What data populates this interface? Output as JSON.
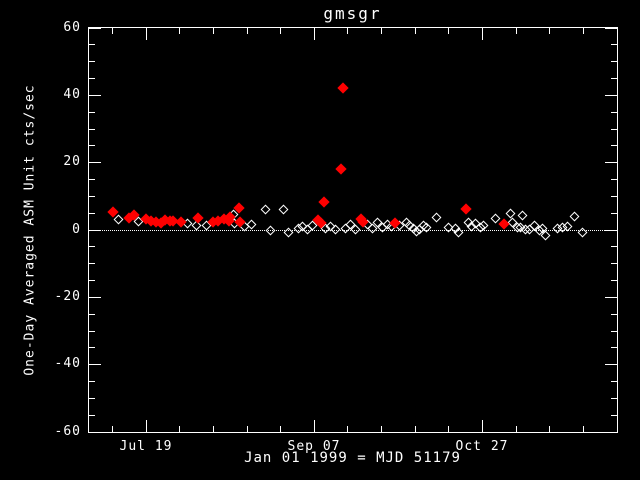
{
  "colors": {
    "background": "#000000",
    "foreground": "#ffffff",
    "flagged_point": "#ff0000"
  },
  "chart_data": {
    "type": "scatter",
    "title": "gmsgr",
    "xlabel": "Jan 01 1999 = MJD 51179",
    "ylabel": "One-Day Averaged ASM Unit cts/sec",
    "x_unit": "day of year 1999",
    "xlim": [
      183,
      340
    ],
    "ylim": [
      -60,
      60
    ],
    "grid": false,
    "legend": null,
    "zero_line": {
      "y": 0,
      "style": "dotted"
    },
    "x_major_ticks": [
      {
        "value": 200,
        "label": "Jul 19"
      },
      {
        "value": 250,
        "label": "Sep 07"
      },
      {
        "value": 300,
        "label": "Oct 27"
      }
    ],
    "x_minor_step": 10,
    "y_major_ticks": [
      {
        "value": 60,
        "label": "60"
      },
      {
        "value": 40,
        "label": "40"
      },
      {
        "value": 20,
        "label": "20"
      },
      {
        "value": 0,
        "label": "0"
      },
      {
        "value": -20,
        "label": "-20"
      },
      {
        "value": -40,
        "label": "-40"
      },
      {
        "value": -60,
        "label": "-60"
      }
    ],
    "y_minor_step": 5,
    "series": [
      {
        "name": "open-diamond-points",
        "marker": "open-diamond",
        "color": "#ffffff",
        "points": [
          [
            192,
            3.1
          ],
          [
            198,
            2.5
          ],
          [
            212.5,
            1.9
          ],
          [
            215,
            1.3
          ],
          [
            218,
            1.3
          ],
          [
            226,
            4.6
          ],
          [
            226.5,
            1.9
          ],
          [
            229.5,
            1.0
          ],
          [
            231.5,
            1.6
          ],
          [
            235.5,
            5.8
          ],
          [
            237,
            -0.4
          ],
          [
            241,
            5.8
          ],
          [
            242.5,
            -1.0
          ],
          [
            245.5,
            0.4
          ],
          [
            246.5,
            1.0
          ],
          [
            248,
            0.1
          ],
          [
            249.5,
            1.3
          ],
          [
            253.5,
            0.4
          ],
          [
            255,
            1.0
          ],
          [
            256.5,
            -0.1
          ],
          [
            259.5,
            0.4
          ],
          [
            261,
            1.6
          ],
          [
            262.5,
            0.1
          ],
          [
            266,
            1.6
          ],
          [
            267.5,
            0.4
          ],
          [
            269,
            2.2
          ],
          [
            270.5,
            0.7
          ],
          [
            272,
            1.6
          ],
          [
            273,
            1.0
          ],
          [
            275.5,
            1.3
          ],
          [
            277.5,
            2.2
          ],
          [
            278.5,
            1.3
          ],
          [
            279.5,
            0.4
          ],
          [
            280.5,
            -0.7
          ],
          [
            281.5,
            -0.1
          ],
          [
            282.5,
            1.3
          ],
          [
            283.5,
            0.7
          ],
          [
            286.5,
            3.7
          ],
          [
            290,
            0.7
          ],
          [
            292,
            0.4
          ],
          [
            293,
            -1.0
          ],
          [
            296,
            2.2
          ],
          [
            297,
            1.0
          ],
          [
            298,
            1.9
          ],
          [
            299.5,
            0.7
          ],
          [
            300.5,
            1.3
          ],
          [
            304,
            3.4
          ],
          [
            308.5,
            4.9
          ],
          [
            309,
            2.2
          ],
          [
            310.5,
            0.7
          ],
          [
            311.5,
            0.7
          ],
          [
            312,
            4.3
          ],
          [
            313,
            0.1
          ],
          [
            314,
            -0.1
          ],
          [
            315.5,
            1.3
          ],
          [
            317,
            -0.4
          ],
          [
            318,
            0.4
          ],
          [
            319,
            -1.9
          ],
          [
            322.5,
            0.4
          ],
          [
            324,
            0.7
          ],
          [
            325.5,
            1.0
          ],
          [
            327.5,
            4.0
          ],
          [
            330,
            -1.0
          ]
        ]
      },
      {
        "name": "red-filled-diamond-points",
        "marker": "filled-diamond",
        "color": "#ff0000",
        "points": [
          [
            190,
            5.2
          ],
          [
            195,
            3.7
          ],
          [
            196.5,
            4.6
          ],
          [
            200,
            3.4
          ],
          [
            201.5,
            2.8
          ],
          [
            203,
            2.5
          ],
          [
            204.5,
            2.2
          ],
          [
            205.5,
            3.1
          ],
          [
            207,
            2.8
          ],
          [
            208,
            2.8
          ],
          [
            210.5,
            2.5
          ],
          [
            215.5,
            3.7
          ],
          [
            220,
            2.5
          ],
          [
            221.5,
            2.8
          ],
          [
            223,
            3.4
          ],
          [
            224.5,
            2.8
          ],
          [
            225,
            4.0
          ],
          [
            227.5,
            6.4
          ],
          [
            228,
            2.5
          ],
          [
            251,
            3.1
          ],
          [
            252,
            2.2
          ],
          [
            253,
            8.4
          ],
          [
            258,
            18.2
          ],
          [
            258.5,
            42.2
          ],
          [
            264,
            3.4
          ],
          [
            264.5,
            2.5
          ],
          [
            274,
            2.2
          ],
          [
            295,
            6.1
          ],
          [
            306.5,
            1.9
          ]
        ]
      }
    ]
  }
}
